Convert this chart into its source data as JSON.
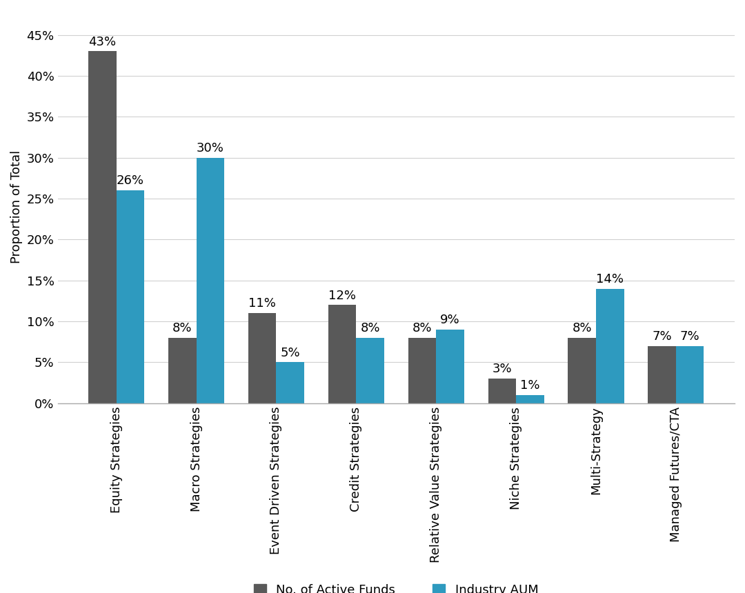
{
  "categories": [
    "Equity Strategies",
    "Macro Strategies",
    "Event Driven Strategies",
    "Credit Strategies",
    "Relative Value Strategies",
    "Niche Strategies",
    "Multi-Strategy",
    "Managed Futures/CTA"
  ],
  "no_of_active_funds": [
    43,
    8,
    11,
    12,
    8,
    3,
    8,
    7
  ],
  "industry_aum": [
    26,
    30,
    5,
    8,
    9,
    1,
    14,
    7
  ],
  "bar_color_funds": "#595959",
  "bar_color_aum": "#2e9abf",
  "ylabel": "Proportion of Total",
  "yticks": [
    0,
    5,
    10,
    15,
    20,
    25,
    30,
    35,
    40,
    45
  ],
  "ytick_labels": [
    "0%",
    "5%",
    "10%",
    "15%",
    "20%",
    "25%",
    "30%",
    "35%",
    "40%",
    "45%"
  ],
  "legend_funds": "No. of Active Funds",
  "legend_aum": "Industry AUM",
  "background_color": "#ffffff",
  "bar_width": 0.35,
  "label_fontsize": 13,
  "tick_fontsize": 13,
  "annot_fontsize": 13,
  "legend_fontsize": 13,
  "ylabel_fontsize": 13
}
